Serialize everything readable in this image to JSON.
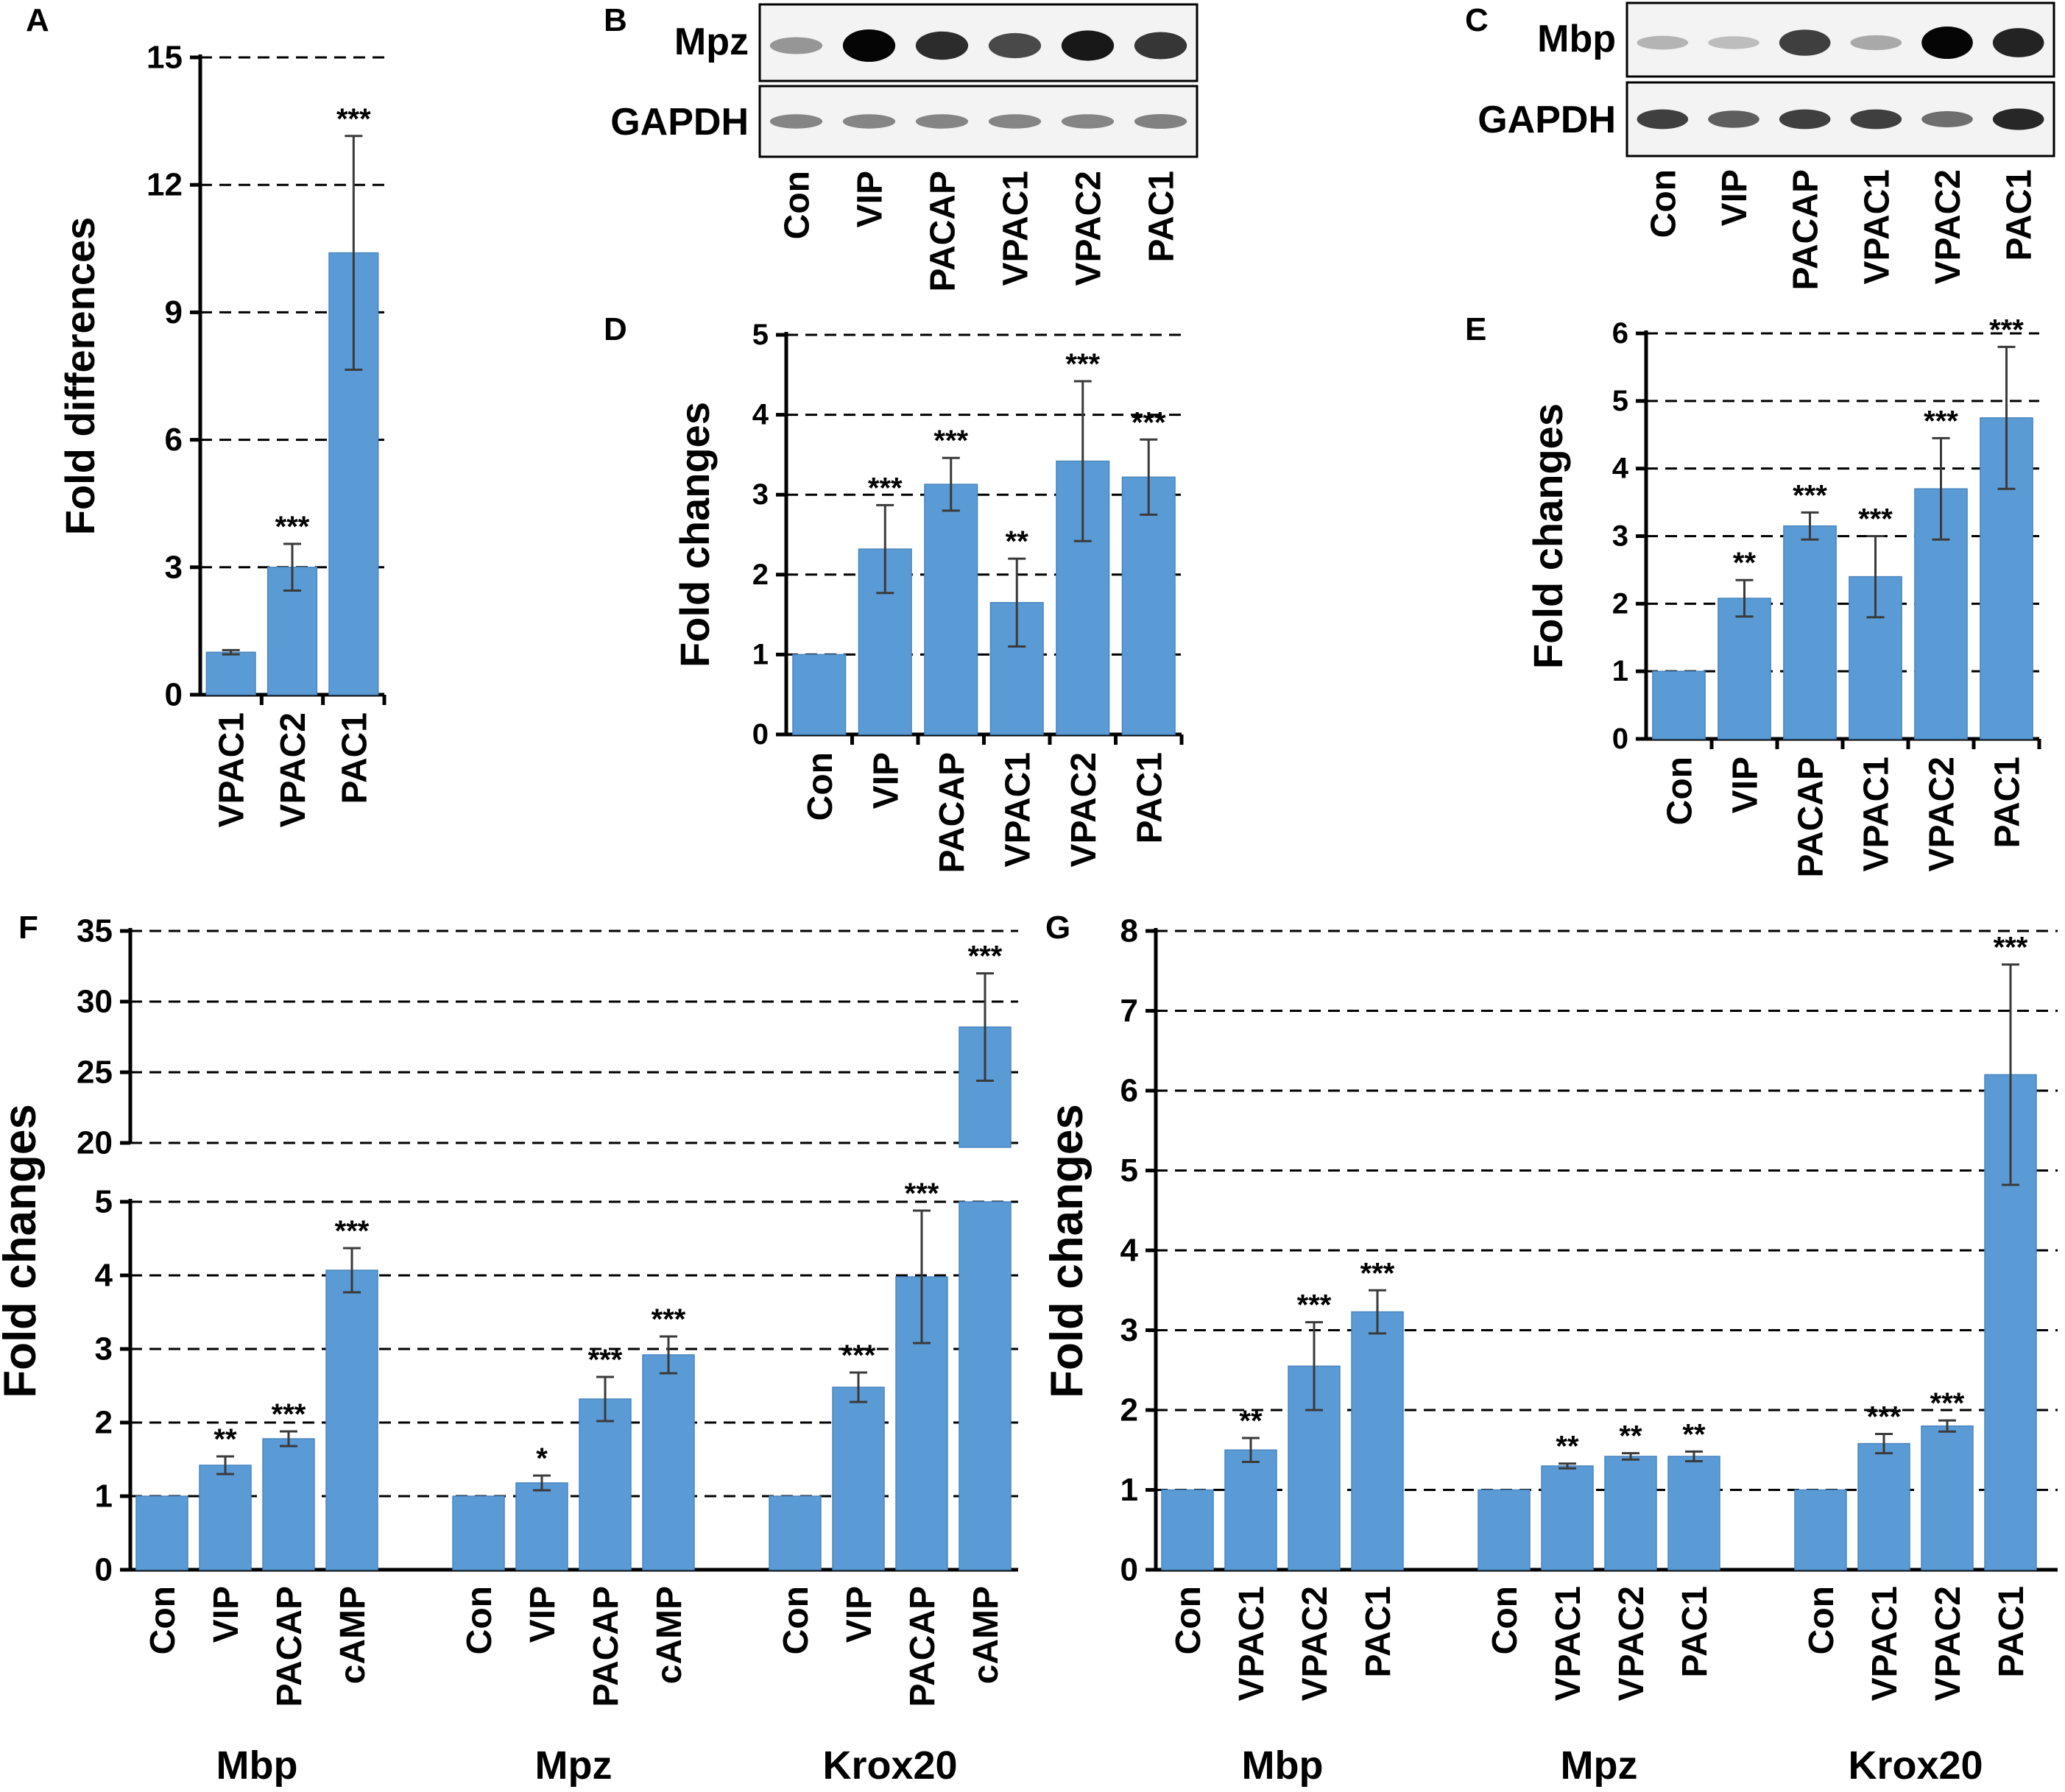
{
  "figure": {
    "panel_letters": [
      "A",
      "B",
      "C",
      "D",
      "E",
      "F",
      "G"
    ]
  },
  "blots": {
    "B": {
      "label": "B",
      "target": "Mpz",
      "loading": "GAPDH",
      "lanes": [
        "Con",
        "VIP",
        "PACAP",
        "VPAC1",
        "VPAC2",
        "PAC1"
      ],
      "target_intensity": [
        0.25,
        1.0,
        0.8,
        0.65,
        0.9,
        0.75
      ],
      "loading_intensity": [
        0.35,
        0.35,
        0.35,
        0.35,
        0.35,
        0.38
      ]
    },
    "C": {
      "label": "C",
      "target": "Mbp",
      "loading": "GAPDH",
      "lanes": [
        "Con",
        "VIP",
        "PACAP",
        "VPAC1",
        "VPAC2",
        "PAC1"
      ],
      "target_intensity": [
        0.1,
        0.05,
        0.7,
        0.15,
        1.0,
        0.85
      ],
      "loading_intensity": [
        0.8,
        0.6,
        0.8,
        0.8,
        0.5,
        0.95
      ]
    }
  },
  "chart_data": [
    {
      "panel": "A",
      "type": "bar",
      "title": "",
      "ylabel": "Fold differences",
      "xlabel": "",
      "ylim": [
        0,
        15
      ],
      "yticks": [
        0,
        3,
        6,
        9,
        12,
        15
      ],
      "categories": [
        "VPAC1",
        "VPAC2",
        "PAC1"
      ],
      "values": [
        1.0,
        3.0,
        10.4
      ],
      "errors": [
        0.05,
        0.55,
        2.75
      ],
      "significance": [
        "",
        "***",
        "***"
      ]
    },
    {
      "panel": "D",
      "type": "bar",
      "title": "",
      "ylabel": "Fold changes",
      "xlabel": "",
      "ylim": [
        0,
        5
      ],
      "yticks": [
        0,
        1,
        2,
        3,
        4,
        5
      ],
      "categories": [
        "Con",
        "VIP",
        "PACAP",
        "VPAC1",
        "VPAC2",
        "PAC1"
      ],
      "values": [
        1.0,
        2.32,
        3.13,
        1.65,
        3.42,
        3.22
      ],
      "errors": [
        0,
        0.55,
        0.33,
        0.55,
        1.0,
        0.47
      ],
      "significance": [
        "",
        "***",
        "***",
        "**",
        "***",
        "***"
      ]
    },
    {
      "panel": "E",
      "type": "bar",
      "title": "",
      "ylabel": "Fold changes",
      "xlabel": "",
      "ylim": [
        0,
        6
      ],
      "yticks": [
        0,
        1,
        2,
        3,
        4,
        5,
        6
      ],
      "categories": [
        "Con",
        "VIP",
        "PACAP",
        "VPAC1",
        "VPAC2",
        "PAC1"
      ],
      "values": [
        1.0,
        2.08,
        3.15,
        2.4,
        3.7,
        4.75
      ],
      "errors": [
        0,
        0.27,
        0.2,
        0.6,
        0.75,
        1.05
      ],
      "significance": [
        "",
        "**",
        "***",
        "***",
        "***",
        "***"
      ]
    },
    {
      "panel": "F",
      "type": "bar",
      "title": "",
      "ylabel": "Fold changes",
      "xlabel": "",
      "broken_axis": true,
      "ylim_lower": [
        0,
        5
      ],
      "yticks_lower": [
        0,
        1,
        2,
        3,
        4,
        5
      ],
      "ylim_upper": [
        20,
        35
      ],
      "yticks_upper": [
        20,
        25,
        30,
        35
      ],
      "groups": [
        "Mbp",
        "Mpz",
        "Krox20"
      ],
      "categories": [
        "Con",
        "VIP",
        "PACAP",
        "cAMP"
      ],
      "series": [
        {
          "group": "Mbp",
          "values": [
            1.0,
            1.42,
            1.78,
            4.07
          ],
          "errors": [
            0,
            0.12,
            0.1,
            0.3
          ],
          "significance": [
            "",
            "**",
            "***",
            "***"
          ]
        },
        {
          "group": "Mpz",
          "values": [
            1.0,
            1.18,
            2.32,
            2.92
          ],
          "errors": [
            0,
            0.1,
            0.3,
            0.25
          ],
          "significance": [
            "",
            "*",
            "***",
            "***"
          ]
        },
        {
          "group": "Krox20",
          "values": [
            1.0,
            2.48,
            3.98,
            28.2
          ],
          "errors": [
            0,
            0.2,
            0.9,
            3.8
          ],
          "significance": [
            "",
            "***",
            "***",
            "***"
          ]
        }
      ]
    },
    {
      "panel": "G",
      "type": "bar",
      "title": "",
      "ylabel": "Fold changes",
      "xlabel": "",
      "ylim": [
        0,
        8
      ],
      "yticks": [
        0,
        1,
        2,
        3,
        4,
        5,
        6,
        7,
        8
      ],
      "groups": [
        "Mbp",
        "Mpz",
        "Krox20"
      ],
      "categories": [
        "Con",
        "VPAC1",
        "VPAC2",
        "PAC1"
      ],
      "series": [
        {
          "group": "Mbp",
          "values": [
            1.0,
            1.5,
            2.55,
            3.23
          ],
          "errors": [
            0,
            0.15,
            0.55,
            0.27
          ],
          "significance": [
            "",
            "**",
            "***",
            "***"
          ]
        },
        {
          "group": "Mpz",
          "values": [
            1.0,
            1.3,
            1.42,
            1.42
          ],
          "errors": [
            0,
            0.03,
            0.04,
            0.06
          ],
          "significance": [
            "",
            "**",
            "**",
            "**"
          ]
        },
        {
          "group": "Krox20",
          "values": [
            1.0,
            1.58,
            1.8,
            6.2
          ],
          "errors": [
            0,
            0.12,
            0.07,
            1.38
          ],
          "significance": [
            "",
            "***",
            "***",
            "***"
          ]
        }
      ]
    }
  ]
}
